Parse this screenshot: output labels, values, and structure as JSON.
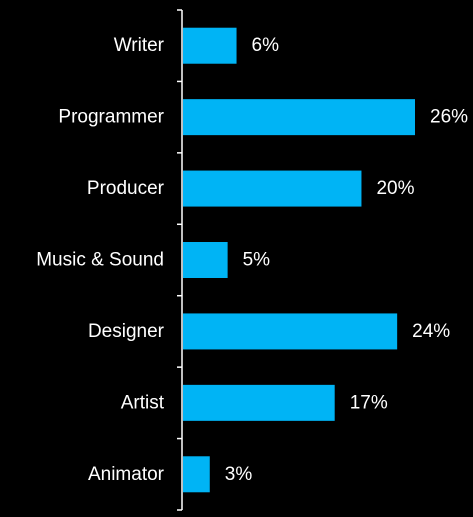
{
  "colors": {
    "background": "#000000",
    "bar": "#00b4f5",
    "axis": "#ffffff",
    "text": "#ffffff"
  },
  "chart_data": {
    "type": "bar",
    "orientation": "horizontal",
    "title": "",
    "xlabel": "",
    "ylabel": "",
    "categories": [
      "Writer",
      "Programmer",
      "Producer",
      "Music & Sound",
      "Designer",
      "Artist",
      "Animator"
    ],
    "values": [
      6,
      26,
      20,
      5,
      24,
      17,
      3
    ],
    "value_labels": [
      "6%",
      "26%",
      "20%",
      "5%",
      "24%",
      "17%",
      "3%"
    ],
    "unit": "%",
    "xlim": [
      0,
      26
    ],
    "grid": false,
    "legend": "none"
  }
}
